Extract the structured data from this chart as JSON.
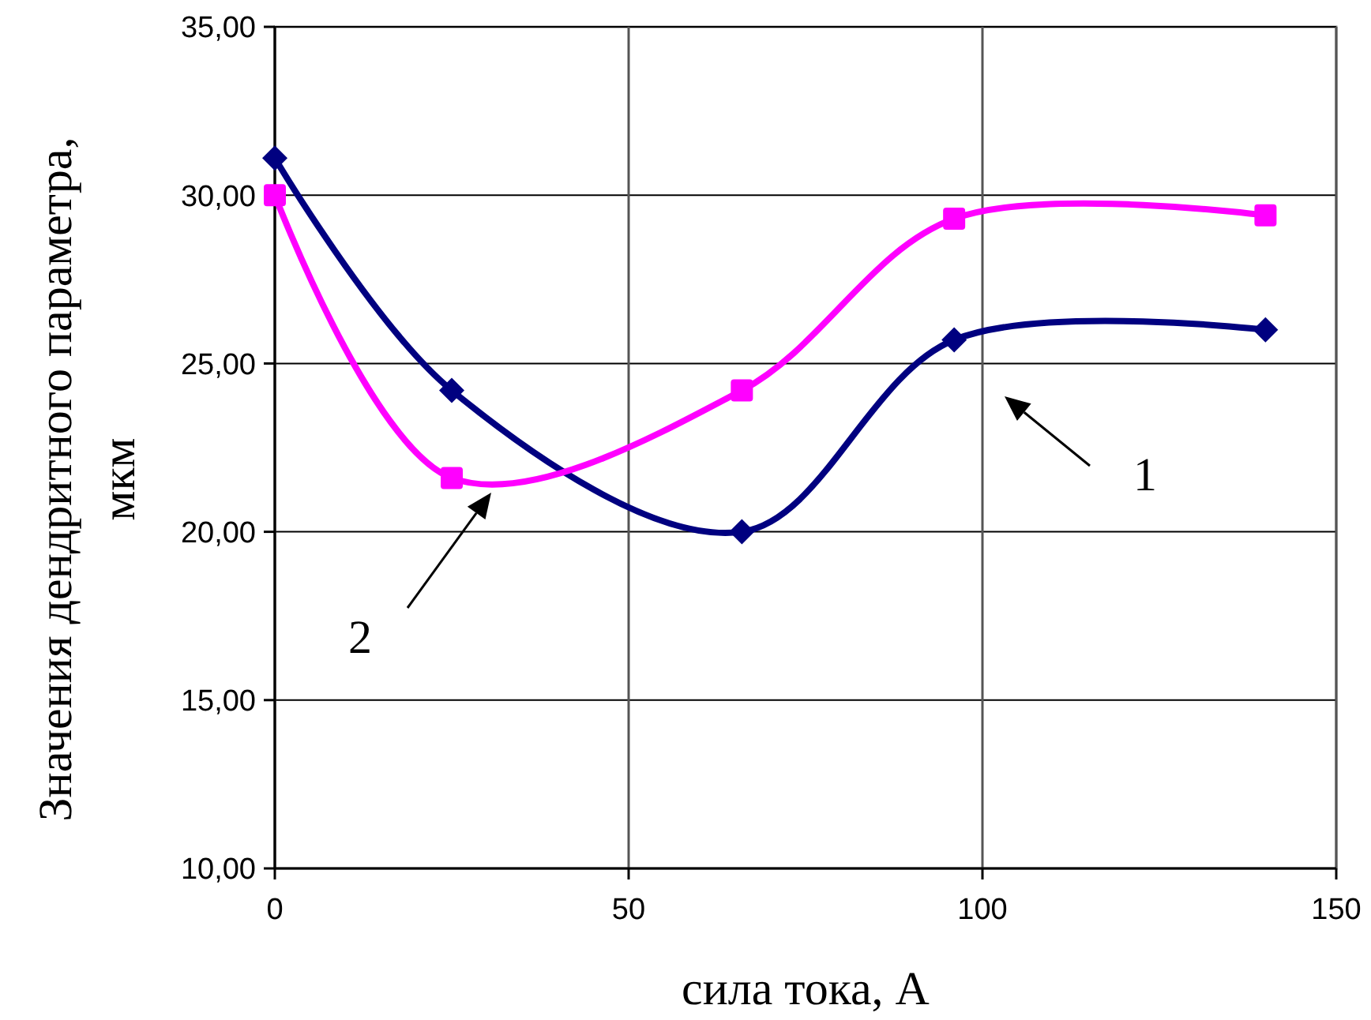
{
  "chart_data": {
    "type": "line",
    "xlabel": "сила тока, А",
    "ylabel": "Значения дендритного параметра,\nмкм",
    "xlim": [
      0,
      150
    ],
    "xticks": [
      0,
      50,
      100,
      150
    ],
    "ylim": [
      10,
      35
    ],
    "yticks": [
      {
        "value": 10,
        "label": "10,00"
      },
      {
        "value": 15,
        "label": "15,00"
      },
      {
        "value": 20,
        "label": "20,00"
      },
      {
        "value": 25,
        "label": "25,00"
      },
      {
        "value": 30,
        "label": "30,00"
      },
      {
        "value": 35,
        "label": "35,00"
      }
    ],
    "grid": true,
    "line_style": "solid",
    "series": [
      {
        "color": "#000080",
        "marker": "diamond",
        "x": [
          0,
          25,
          66,
          96,
          140
        ],
        "values": [
          31.1,
          24.2,
          20.0,
          25.7,
          26.0
        ]
      },
      {
        "color": "#ff00ff",
        "marker": "square",
        "x": [
          0,
          25,
          66,
          96,
          140
        ],
        "values": [
          30.0,
          21.6,
          24.2,
          29.3,
          29.4
        ]
      }
    ],
    "annotations": [
      "1",
      "2"
    ]
  }
}
